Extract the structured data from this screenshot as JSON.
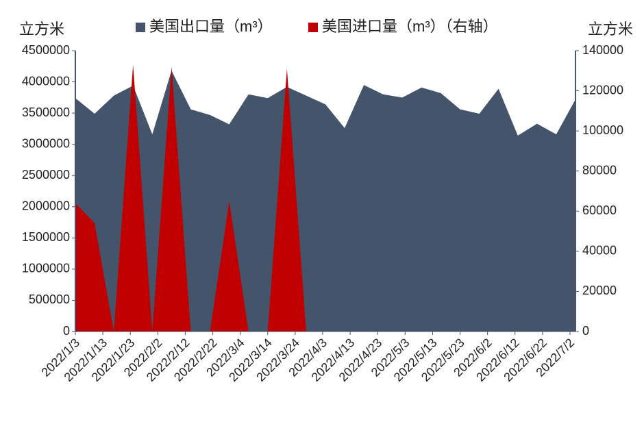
{
  "chart_data": {
    "type": "area",
    "x": [
      "2022-01-03",
      "2022-01-10",
      "2022-01-17",
      "2022-01-24",
      "2022-01-31",
      "2022-02-07",
      "2022-02-14",
      "2022-02-21",
      "2022-02-28",
      "2022-03-07",
      "2022-03-14",
      "2022-03-21",
      "2022-03-28",
      "2022-04-04",
      "2022-04-11",
      "2022-04-18",
      "2022-04-25",
      "2022-05-02",
      "2022-05-09",
      "2022-05-16",
      "2022-05-23",
      "2022-05-30",
      "2022-06-06",
      "2022-06-13",
      "2022-06-20",
      "2022-06-27",
      "2022-07-04"
    ],
    "series": [
      {
        "name": "美国出口量（m³）",
        "color": "#44546a",
        "axis": "y",
        "values": [
          3740000,
          3490000,
          3780000,
          3940000,
          3160000,
          4180000,
          3560000,
          3470000,
          3320000,
          3800000,
          3740000,
          3920000,
          3780000,
          3640000,
          3260000,
          3950000,
          3800000,
          3750000,
          3910000,
          3820000,
          3560000,
          3490000,
          3890000,
          3140000,
          3330000,
          3160000,
          3720000
        ]
      },
      {
        "name": "美国进口量（m³）（右轴）",
        "color": "#c00000",
        "axis": "y2",
        "values": [
          64000,
          54000,
          0,
          133000,
          0,
          132000,
          0,
          0,
          65000,
          0,
          0,
          131000,
          0,
          0,
          0,
          0,
          0,
          0,
          0,
          0,
          0,
          0,
          0,
          0,
          0,
          0,
          0
        ]
      }
    ],
    "y_label": "立方米",
    "y2_label": "立方米",
    "xlim": [
      "2022-01-03",
      "2022-07-04"
    ],
    "xticks": [
      {
        "value": "2022-01-03",
        "label": "2022/1/3"
      },
      {
        "value": "2022-01-13",
        "label": "2022/1/13"
      },
      {
        "value": "2022-01-23",
        "label": "2022/1/23"
      },
      {
        "value": "2022-02-02",
        "label": "2022/2/2"
      },
      {
        "value": "2022-02-12",
        "label": "2022/2/12"
      },
      {
        "value": "2022-02-22",
        "label": "2022/2/22"
      },
      {
        "value": "2022-03-04",
        "label": "2022/3/4"
      },
      {
        "value": "2022-03-14",
        "label": "2022/3/14"
      },
      {
        "value": "2022-03-24",
        "label": "2022/3/24"
      },
      {
        "value": "2022-04-03",
        "label": "2022/4/3"
      },
      {
        "value": "2022-04-13",
        "label": "2022/4/13"
      },
      {
        "value": "2022-04-23",
        "label": "2022/4/23"
      },
      {
        "value": "2022-05-03",
        "label": "2022/5/3"
      },
      {
        "value": "2022-05-13",
        "label": "2022/5/13"
      },
      {
        "value": "2022-05-23",
        "label": "2022/5/23"
      },
      {
        "value": "2022-06-02",
        "label": "2022/6/2"
      },
      {
        "value": "2022-06-12",
        "label": "2022/6/12"
      },
      {
        "value": "2022-06-22",
        "label": "2022/6/22"
      },
      {
        "value": "2022-07-02",
        "label": "2022/7/2"
      }
    ],
    "ylim": [
      0,
      4500000
    ],
    "yticks": [
      0,
      500000,
      1000000,
      1500000,
      2000000,
      2500000,
      3000000,
      3500000,
      4000000,
      4500000
    ],
    "y2lim": [
      0,
      140000
    ],
    "y2ticks": [
      0,
      20000,
      40000,
      60000,
      80000,
      100000,
      120000,
      140000
    ],
    "legend": "top",
    "grid": false
  }
}
